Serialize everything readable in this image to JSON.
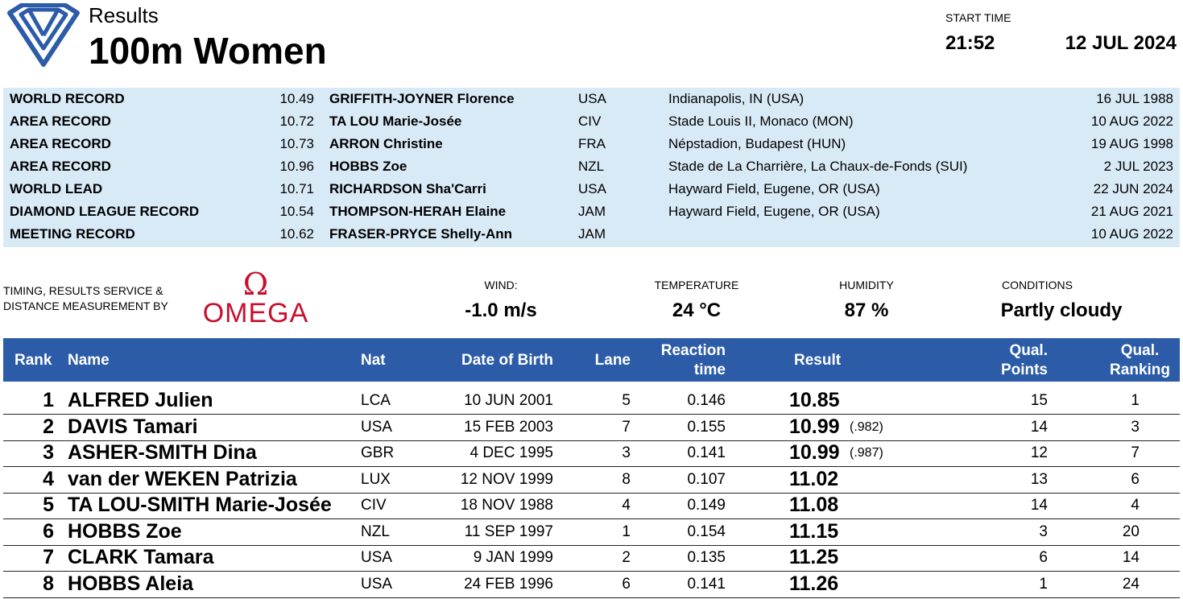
{
  "header": {
    "subtitle": "Results",
    "title": "100m Women",
    "start_time_label": "START TIME",
    "start_time": "21:52",
    "date": "12 JUL 2024"
  },
  "records": [
    {
      "type": "WORLD RECORD",
      "time": "10.49",
      "name": "GRIFFITH-JOYNER Florence",
      "nat": "USA",
      "venue": "Indianapolis, IN (USA)",
      "date": "16 JUL 1988"
    },
    {
      "type": "AREA RECORD",
      "time": "10.72",
      "name": "TA LOU Marie-Josée",
      "nat": "CIV",
      "venue": "Stade Louis II, Monaco (MON)",
      "date": "10 AUG 2022"
    },
    {
      "type": "AREA RECORD",
      "time": "10.73",
      "name": "ARRON Christine",
      "nat": "FRA",
      "venue": "Népstadion, Budapest (HUN)",
      "date": "19 AUG 1998"
    },
    {
      "type": "AREA RECORD",
      "time": "10.96",
      "name": "HOBBS Zoe",
      "nat": "NZL",
      "venue": "Stade de La Charrière, La Chaux-de-Fonds (SUI)",
      "date": "2 JUL 2023"
    },
    {
      "type": "WORLD LEAD",
      "time": "10.71",
      "name": "RICHARDSON Sha'Carri",
      "nat": "USA",
      "venue": "Hayward Field, Eugene, OR (USA)",
      "date": "22 JUN 2024"
    },
    {
      "type": "DIAMOND LEAGUE RECORD",
      "time": "10.54",
      "name": "THOMPSON-HERAH Elaine",
      "nat": "JAM",
      "venue": "Hayward Field, Eugene, OR (USA)",
      "date": "21 AUG 2021"
    },
    {
      "type": "MEETING RECORD",
      "time": "10.62",
      "name": "FRASER-PRYCE Shelly-Ann",
      "nat": "JAM",
      "venue": "",
      "date": "10 AUG 2022"
    }
  ],
  "timing": {
    "line1": "TIMING, RESULTS SERVICE &",
    "line2": "DISTANCE MEASUREMENT BY",
    "brand": "OMEGA",
    "brand_symbol": "Ω",
    "brand_color": "#c8102e"
  },
  "conditions": {
    "wind_label": "WIND:",
    "wind": "-1.0 m/s",
    "temp_label": "TEMPERATURE",
    "temp": "24 °C",
    "humidity_label": "HUMIDITY",
    "humidity": "87 %",
    "cond_label": "CONDITIONS",
    "cond": "Partly cloudy"
  },
  "table": {
    "headers": {
      "rank": "Rank",
      "name": "Name",
      "nat": "Nat",
      "dob": "Date of Birth",
      "lane": "Lane",
      "rt1": "Reaction",
      "rt2": "time",
      "result": "Result",
      "qp1": "Qual.",
      "qp2": "Points",
      "qr1": "Qual.",
      "qr2": "Ranking"
    },
    "rows": [
      {
        "rank": "1",
        "name": "ALFRED Julien",
        "nat": "LCA",
        "dob": "10 JUN 2001",
        "lane": "5",
        "rt": "0.146",
        "result": "10.85",
        "tie": "",
        "qp": "15",
        "qr": "1"
      },
      {
        "rank": "2",
        "name": "DAVIS Tamari",
        "nat": "USA",
        "dob": "15 FEB 2003",
        "lane": "7",
        "rt": "0.155",
        "result": "10.99",
        "tie": "(.982)",
        "qp": "14",
        "qr": "3"
      },
      {
        "rank": "3",
        "name": "ASHER-SMITH Dina",
        "nat": "GBR",
        "dob": "4 DEC 1995",
        "lane": "3",
        "rt": "0.141",
        "result": "10.99",
        "tie": "(.987)",
        "qp": "12",
        "qr": "7"
      },
      {
        "rank": "4",
        "name": "van der WEKEN Patrizia",
        "nat": "LUX",
        "dob": "12 NOV 1999",
        "lane": "8",
        "rt": "0.107",
        "result": "11.02",
        "tie": "",
        "qp": "13",
        "qr": "6"
      },
      {
        "rank": "5",
        "name": "TA LOU-SMITH Marie-Josée",
        "nat": "CIV",
        "dob": "18 NOV 1988",
        "lane": "4",
        "rt": "0.149",
        "result": "11.08",
        "tie": "",
        "qp": "14",
        "qr": "4"
      },
      {
        "rank": "6",
        "name": "HOBBS Zoe",
        "nat": "NZL",
        "dob": "11 SEP 1997",
        "lane": "1",
        "rt": "0.154",
        "result": "11.15",
        "tie": "",
        "qp": "3",
        "qr": "20"
      },
      {
        "rank": "7",
        "name": "CLARK Tamara",
        "nat": "USA",
        "dob": "9 JAN 1999",
        "lane": "2",
        "rt": "0.135",
        "result": "11.25",
        "tie": "",
        "qp": "6",
        "qr": "14"
      },
      {
        "rank": "8",
        "name": "HOBBS Aleia",
        "nat": "USA",
        "dob": "24 FEB 1996",
        "lane": "6",
        "rt": "0.141",
        "result": "11.26",
        "tie": "",
        "qp": "1",
        "qr": "24"
      }
    ]
  },
  "colors": {
    "header_bar": "#2c5ca8",
    "record_bg": "#d9eaf7",
    "logo_blue": "#2c5ca8"
  }
}
